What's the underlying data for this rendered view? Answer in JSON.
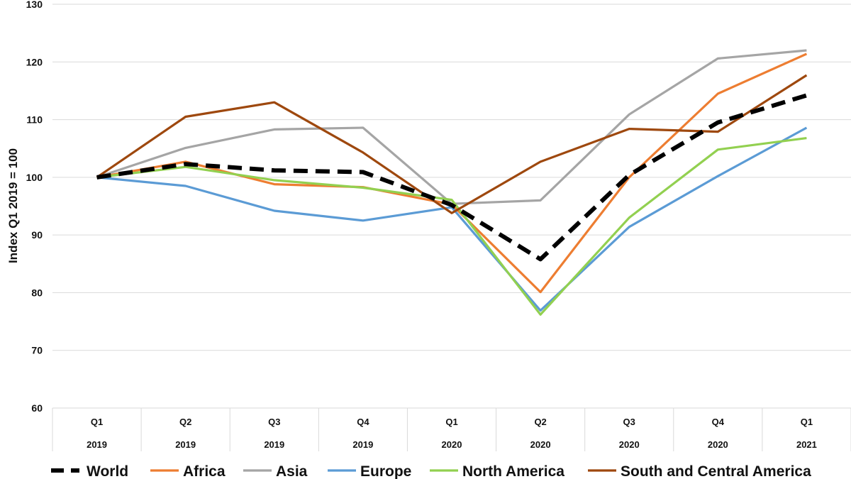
{
  "chart_data": {
    "type": "line",
    "title": "",
    "ylabel": "Index Q1 2019 = 100",
    "xlabel": "",
    "ylim": [
      60,
      130
    ],
    "yticks": [
      60,
      70,
      80,
      90,
      100,
      110,
      120,
      130
    ],
    "grid": "horizontal",
    "legend_position": "bottom",
    "categories": [
      {
        "quarter": "Q1",
        "year": "2019"
      },
      {
        "quarter": "Q2",
        "year": "2019"
      },
      {
        "quarter": "Q3",
        "year": "2019"
      },
      {
        "quarter": "Q4",
        "year": "2019"
      },
      {
        "quarter": "Q1",
        "year": "2020"
      },
      {
        "quarter": "Q2",
        "year": "2020"
      },
      {
        "quarter": "Q3",
        "year": "2020"
      },
      {
        "quarter": "Q4",
        "year": "2020"
      },
      {
        "quarter": "Q1",
        "year": "2021"
      }
    ],
    "series": [
      {
        "name": "World",
        "color": "#000000",
        "dashed": true,
        "values": [
          100,
          102.3,
          101.2,
          100.9,
          95.2,
          85.8,
          100.4,
          109.5,
          114.2
        ]
      },
      {
        "name": "Africa",
        "color": "#ED7D31",
        "dashed": false,
        "values": [
          100,
          102.7,
          98.8,
          98.3,
          95.3,
          80.1,
          100.0,
          114.5,
          121.4
        ]
      },
      {
        "name": "Asia",
        "color": "#A5A5A5",
        "dashed": false,
        "values": [
          100,
          105.1,
          108.3,
          108.6,
          95.4,
          96.0,
          110.9,
          120.6,
          122.0
        ]
      },
      {
        "name": "Europe",
        "color": "#5B9BD5",
        "dashed": false,
        "values": [
          100,
          98.5,
          94.2,
          92.5,
          94.8,
          76.9,
          91.4,
          100.2,
          108.6
        ]
      },
      {
        "name": "North America",
        "color": "#92D050",
        "dashed": false,
        "values": [
          100,
          101.8,
          99.5,
          98.2,
          96.1,
          76.2,
          93.0,
          104.8,
          106.8
        ]
      },
      {
        "name": "South and Central America",
        "color": "#9E480E",
        "dashed": false,
        "values": [
          100,
          110.5,
          113.0,
          104.3,
          93.8,
          102.7,
          108.4,
          107.9,
          117.7
        ]
      }
    ]
  }
}
